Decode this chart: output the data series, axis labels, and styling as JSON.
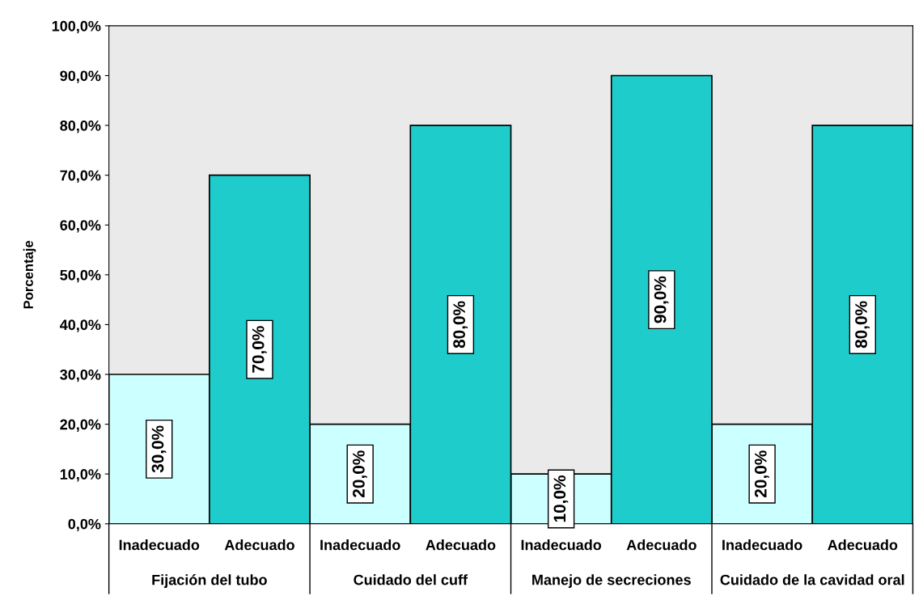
{
  "chart_data": {
    "type": "bar",
    "ylabel": "Porcentaje",
    "categories": [
      "Fijación del tubo",
      "Cuidado del cuff",
      "Manejo de secreciones",
      "Cuidado de la cavidad oral"
    ],
    "series": [
      {
        "name": "Inadecuado",
        "color": "#ccffff",
        "values": [
          30,
          20,
          10,
          20
        ],
        "value_labels": [
          "30,0%",
          "20,0%",
          "10,0%",
          "20,0%"
        ]
      },
      {
        "name": "Adecuado",
        "color": "#1fcccc",
        "values": [
          70,
          80,
          90,
          80
        ],
        "value_labels": [
          "70,0%",
          "80,0%",
          "90,0%",
          "80,0%"
        ]
      }
    ],
    "ylim": [
      0,
      100
    ],
    "yticks": [
      {
        "value": 0,
        "label": "0,0%"
      },
      {
        "value": 10,
        "label": "10,0%"
      },
      {
        "value": 20,
        "label": "20,0%"
      },
      {
        "value": 30,
        "label": "30,0%"
      },
      {
        "value": 40,
        "label": "40,0%"
      },
      {
        "value": 50,
        "label": "50,0%"
      },
      {
        "value": 60,
        "label": "60,0%"
      },
      {
        "value": 70,
        "label": "70,0%"
      },
      {
        "value": 80,
        "label": "80,0%"
      },
      {
        "value": 90,
        "label": "90,0%"
      },
      {
        "value": 100,
        "label": "100,0%"
      }
    ],
    "grid": false,
    "legend": false
  }
}
